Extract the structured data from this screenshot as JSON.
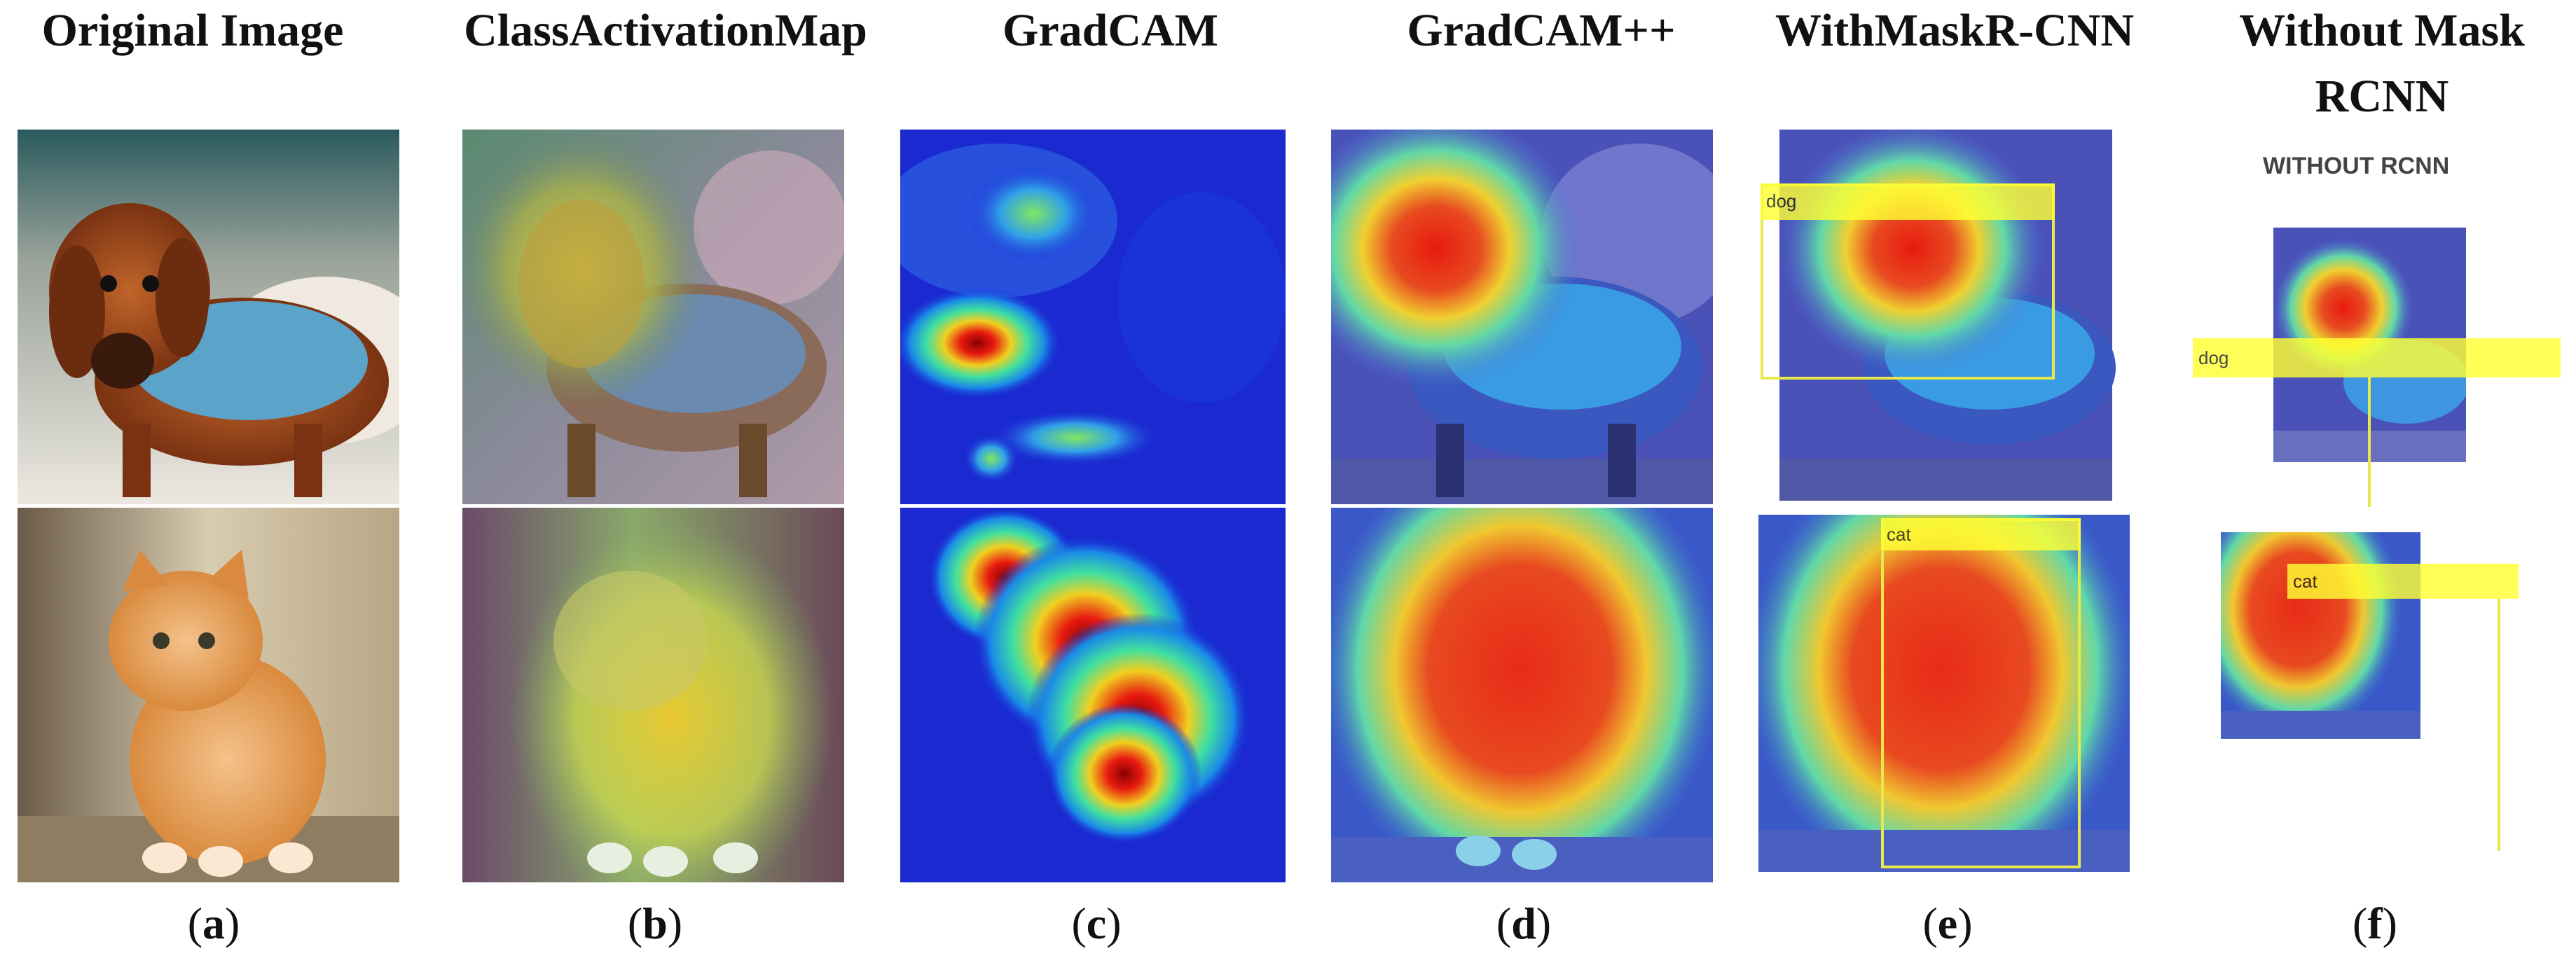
{
  "columns": [
    {
      "title": "Original Image",
      "letter": "a"
    },
    {
      "title": "ClassActivationMap",
      "letter": "b"
    },
    {
      "title": "GradCAM",
      "letter": "c"
    },
    {
      "title": "GradCAM++",
      "letter": "d"
    },
    {
      "title": "WithMaskR-CNN",
      "letter": "e"
    },
    {
      "title_line1": "Without Mask",
      "title_line2": "RCNN",
      "letter": "f"
    }
  ],
  "panel_f_subtitle": "WITHOUT RCNN",
  "labels": {
    "e_dog": "dog",
    "e_cat": "cat",
    "f_dog": "dog",
    "f_cat": "cat"
  },
  "colors": {
    "box_yellow": "#ffff33",
    "jet_blue": "#1a2bd8",
    "jet_red": "#e8221a"
  }
}
